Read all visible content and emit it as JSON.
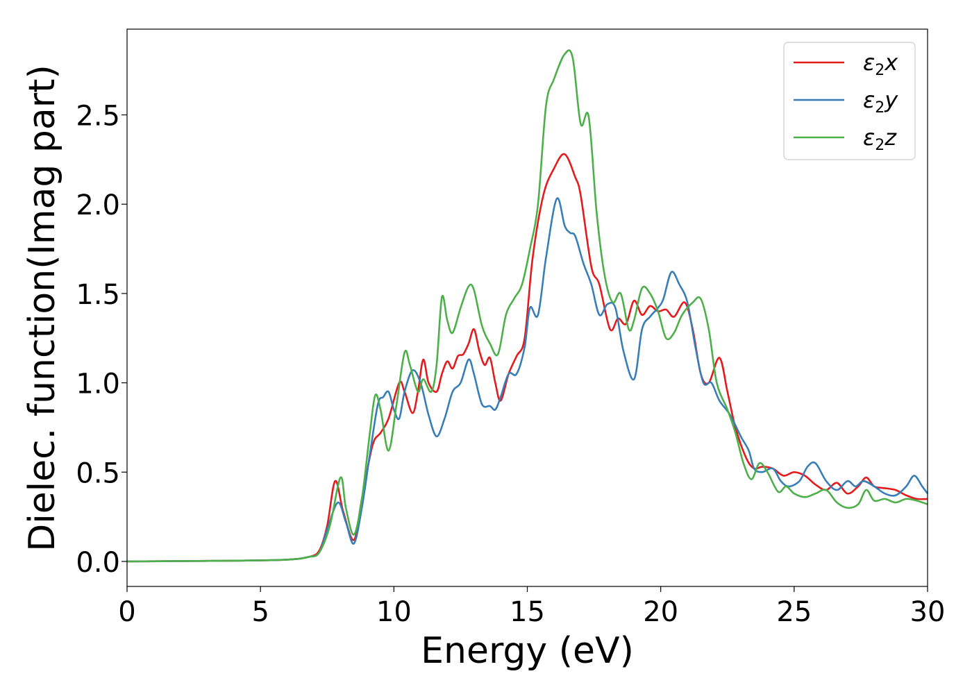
{
  "chart_data": {
    "type": "line",
    "title": "",
    "xlabel": "Energy (eV)",
    "ylabel": "Dielec. function(Imag part)",
    "xlim": [
      0,
      30
    ],
    "ylim": [
      -0.14,
      2.98
    ],
    "xticks": [
      0,
      5,
      10,
      15,
      20,
      25,
      30
    ],
    "xtick_labels": [
      "0",
      "5",
      "10",
      "15",
      "20",
      "25",
      "30"
    ],
    "yticks": [
      0.0,
      0.5,
      1.0,
      1.5,
      2.0,
      2.5
    ],
    "ytick_labels": [
      "0.0",
      "0.5",
      "1.0",
      "1.5",
      "2.0",
      "2.5"
    ],
    "grid": false,
    "legend_position": "top-right",
    "series": [
      {
        "name": "ε₂x",
        "legend_base": "ε",
        "legend_sub": "2",
        "legend_suffix": "x",
        "color": "#e41a1c",
        "points": [
          [
            0,
            0
          ],
          [
            2,
            0.002
          ],
          [
            4,
            0.004
          ],
          [
            6,
            0.01
          ],
          [
            6.8,
            0.025
          ],
          [
            7.2,
            0.06
          ],
          [
            7.5,
            0.2
          ],
          [
            7.8,
            0.45
          ],
          [
            8.1,
            0.28
          ],
          [
            8.5,
            0.12
          ],
          [
            8.8,
            0.35
          ],
          [
            9.2,
            0.65
          ],
          [
            9.5,
            0.72
          ],
          [
            9.8,
            0.8
          ],
          [
            10.2,
            1.0
          ],
          [
            10.4,
            0.95
          ],
          [
            10.7,
            0.83
          ],
          [
            10.9,
            0.95
          ],
          [
            11.1,
            1.13
          ],
          [
            11.3,
            1.0
          ],
          [
            11.6,
            0.95
          ],
          [
            11.8,
            1.05
          ],
          [
            12.0,
            1.12
          ],
          [
            12.2,
            1.08
          ],
          [
            12.4,
            1.15
          ],
          [
            12.6,
            1.16
          ],
          [
            12.8,
            1.22
          ],
          [
            13.0,
            1.3
          ],
          [
            13.2,
            1.18
          ],
          [
            13.4,
            1.1
          ],
          [
            13.6,
            1.14
          ],
          [
            13.8,
            1.0
          ],
          [
            14.0,
            0.9
          ],
          [
            14.3,
            1.05
          ],
          [
            14.6,
            1.15
          ],
          [
            14.9,
            1.25
          ],
          [
            15.2,
            1.7
          ],
          [
            15.6,
            2.05
          ],
          [
            16.0,
            2.2
          ],
          [
            16.4,
            2.28
          ],
          [
            16.8,
            2.15
          ],
          [
            17.0,
            2.05
          ],
          [
            17.4,
            1.65
          ],
          [
            17.7,
            1.55
          ],
          [
            18.1,
            1.3
          ],
          [
            18.4,
            1.36
          ],
          [
            18.7,
            1.33
          ],
          [
            19.0,
            1.46
          ],
          [
            19.3,
            1.38
          ],
          [
            19.6,
            1.43
          ],
          [
            19.9,
            1.4
          ],
          [
            20.2,
            1.41
          ],
          [
            20.5,
            1.37
          ],
          [
            20.9,
            1.45
          ],
          [
            21.2,
            1.3
          ],
          [
            21.5,
            1.05
          ],
          [
            21.8,
            1.0
          ],
          [
            22.2,
            1.14
          ],
          [
            22.5,
            0.95
          ],
          [
            22.8,
            0.75
          ],
          [
            23.2,
            0.58
          ],
          [
            23.5,
            0.52
          ],
          [
            23.8,
            0.53
          ],
          [
            24.2,
            0.52
          ],
          [
            24.6,
            0.48
          ],
          [
            25.0,
            0.5
          ],
          [
            25.4,
            0.48
          ],
          [
            25.8,
            0.43
          ],
          [
            26.2,
            0.4
          ],
          [
            26.6,
            0.44
          ],
          [
            27.0,
            0.38
          ],
          [
            27.4,
            0.42
          ],
          [
            27.7,
            0.47
          ],
          [
            28.0,
            0.42
          ],
          [
            28.4,
            0.41
          ],
          [
            28.8,
            0.4
          ],
          [
            29.2,
            0.37
          ],
          [
            29.6,
            0.35
          ],
          [
            30,
            0.35
          ]
        ]
      },
      {
        "name": "ε₂y",
        "legend_base": "ε",
        "legend_sub": "2",
        "legend_suffix": "y",
        "color": "#377eb8",
        "points": [
          [
            0,
            0
          ],
          [
            2,
            0.002
          ],
          [
            4,
            0.004
          ],
          [
            6,
            0.01
          ],
          [
            6.8,
            0.025
          ],
          [
            7.2,
            0.05
          ],
          [
            7.5,
            0.18
          ],
          [
            7.9,
            0.33
          ],
          [
            8.2,
            0.22
          ],
          [
            8.5,
            0.1
          ],
          [
            8.8,
            0.3
          ],
          [
            9.1,
            0.6
          ],
          [
            9.4,
            0.88
          ],
          [
            9.6,
            0.92
          ],
          [
            9.8,
            0.95
          ],
          [
            10.0,
            0.85
          ],
          [
            10.2,
            0.8
          ],
          [
            10.4,
            0.95
          ],
          [
            10.7,
            1.07
          ],
          [
            11.0,
            1.0
          ],
          [
            11.3,
            0.82
          ],
          [
            11.6,
            0.7
          ],
          [
            11.9,
            0.8
          ],
          [
            12.2,
            0.95
          ],
          [
            12.5,
            1.0
          ],
          [
            12.8,
            1.13
          ],
          [
            13.0,
            1.05
          ],
          [
            13.3,
            0.88
          ],
          [
            13.6,
            0.87
          ],
          [
            13.8,
            0.85
          ],
          [
            14.0,
            0.92
          ],
          [
            14.3,
            1.05
          ],
          [
            14.6,
            1.05
          ],
          [
            14.9,
            1.2
          ],
          [
            15.1,
            1.42
          ],
          [
            15.4,
            1.38
          ],
          [
            15.7,
            1.7
          ],
          [
            16.1,
            2.03
          ],
          [
            16.4,
            1.88
          ],
          [
            16.6,
            1.84
          ],
          [
            16.8,
            1.82
          ],
          [
            17.1,
            1.67
          ],
          [
            17.4,
            1.55
          ],
          [
            17.7,
            1.38
          ],
          [
            18.0,
            1.44
          ],
          [
            18.3,
            1.42
          ],
          [
            18.6,
            1.18
          ],
          [
            19.0,
            1.02
          ],
          [
            19.3,
            1.3
          ],
          [
            19.6,
            1.37
          ],
          [
            19.9,
            1.42
          ],
          [
            20.1,
            1.47
          ],
          [
            20.4,
            1.62
          ],
          [
            20.7,
            1.55
          ],
          [
            21.0,
            1.45
          ],
          [
            21.3,
            1.2
          ],
          [
            21.6,
            1.0
          ],
          [
            21.9,
            1.0
          ],
          [
            22.2,
            0.9
          ],
          [
            22.6,
            0.82
          ],
          [
            23.0,
            0.7
          ],
          [
            23.3,
            0.62
          ],
          [
            23.5,
            0.52
          ],
          [
            23.8,
            0.5
          ],
          [
            24.2,
            0.52
          ],
          [
            24.5,
            0.45
          ],
          [
            24.8,
            0.42
          ],
          [
            25.2,
            0.45
          ],
          [
            25.5,
            0.53
          ],
          [
            25.8,
            0.55
          ],
          [
            26.2,
            0.45
          ],
          [
            26.6,
            0.4
          ],
          [
            27.0,
            0.45
          ],
          [
            27.3,
            0.42
          ],
          [
            27.6,
            0.45
          ],
          [
            28.0,
            0.42
          ],
          [
            28.4,
            0.38
          ],
          [
            28.8,
            0.37
          ],
          [
            29.2,
            0.42
          ],
          [
            29.5,
            0.48
          ],
          [
            29.8,
            0.42
          ],
          [
            30,
            0.38
          ]
        ]
      },
      {
        "name": "ε₂z",
        "legend_base": "ε",
        "legend_sub": "2",
        "legend_suffix": "z",
        "color": "#4daf4a",
        "points": [
          [
            0,
            0
          ],
          [
            2,
            0.002
          ],
          [
            4,
            0.004
          ],
          [
            6,
            0.01
          ],
          [
            6.8,
            0.025
          ],
          [
            7.2,
            0.05
          ],
          [
            7.6,
            0.2
          ],
          [
            8.0,
            0.47
          ],
          [
            8.2,
            0.3
          ],
          [
            8.5,
            0.15
          ],
          [
            8.8,
            0.35
          ],
          [
            9.1,
            0.72
          ],
          [
            9.3,
            0.93
          ],
          [
            9.5,
            0.85
          ],
          [
            9.8,
            0.62
          ],
          [
            10.1,
            0.88
          ],
          [
            10.4,
            1.17
          ],
          [
            10.6,
            1.1
          ],
          [
            10.9,
            0.95
          ],
          [
            11.1,
            1.02
          ],
          [
            11.4,
            0.95
          ],
          [
            11.6,
            1.1
          ],
          [
            11.8,
            1.48
          ],
          [
            12.0,
            1.35
          ],
          [
            12.2,
            1.28
          ],
          [
            12.5,
            1.42
          ],
          [
            12.8,
            1.54
          ],
          [
            13.0,
            1.52
          ],
          [
            13.3,
            1.32
          ],
          [
            13.6,
            1.22
          ],
          [
            13.9,
            1.16
          ],
          [
            14.2,
            1.38
          ],
          [
            14.5,
            1.47
          ],
          [
            14.8,
            1.55
          ],
          [
            15.1,
            1.75
          ],
          [
            15.4,
            2.0
          ],
          [
            15.7,
            2.55
          ],
          [
            16.0,
            2.7
          ],
          [
            16.4,
            2.84
          ],
          [
            16.7,
            2.82
          ],
          [
            17.0,
            2.45
          ],
          [
            17.3,
            2.49
          ],
          [
            17.6,
            1.95
          ],
          [
            17.9,
            1.6
          ],
          [
            18.2,
            1.45
          ],
          [
            18.5,
            1.5
          ],
          [
            18.8,
            1.3
          ],
          [
            19.0,
            1.35
          ],
          [
            19.3,
            1.53
          ],
          [
            19.6,
            1.5
          ],
          [
            19.9,
            1.4
          ],
          [
            20.2,
            1.25
          ],
          [
            20.5,
            1.28
          ],
          [
            20.8,
            1.38
          ],
          [
            21.2,
            1.45
          ],
          [
            21.5,
            1.47
          ],
          [
            21.8,
            1.3
          ],
          [
            22.1,
            1.0
          ],
          [
            22.5,
            0.85
          ],
          [
            22.8,
            0.72
          ],
          [
            23.1,
            0.55
          ],
          [
            23.4,
            0.46
          ],
          [
            23.7,
            0.55
          ],
          [
            24.0,
            0.5
          ],
          [
            24.4,
            0.39
          ],
          [
            24.7,
            0.42
          ],
          [
            25.0,
            0.38
          ],
          [
            25.4,
            0.36
          ],
          [
            25.8,
            0.38
          ],
          [
            26.2,
            0.4
          ],
          [
            26.6,
            0.33
          ],
          [
            27.0,
            0.3
          ],
          [
            27.4,
            0.32
          ],
          [
            27.7,
            0.4
          ],
          [
            28.0,
            0.34
          ],
          [
            28.4,
            0.35
          ],
          [
            28.8,
            0.33
          ],
          [
            29.2,
            0.35
          ],
          [
            29.6,
            0.34
          ],
          [
            30,
            0.32
          ]
        ]
      }
    ]
  }
}
